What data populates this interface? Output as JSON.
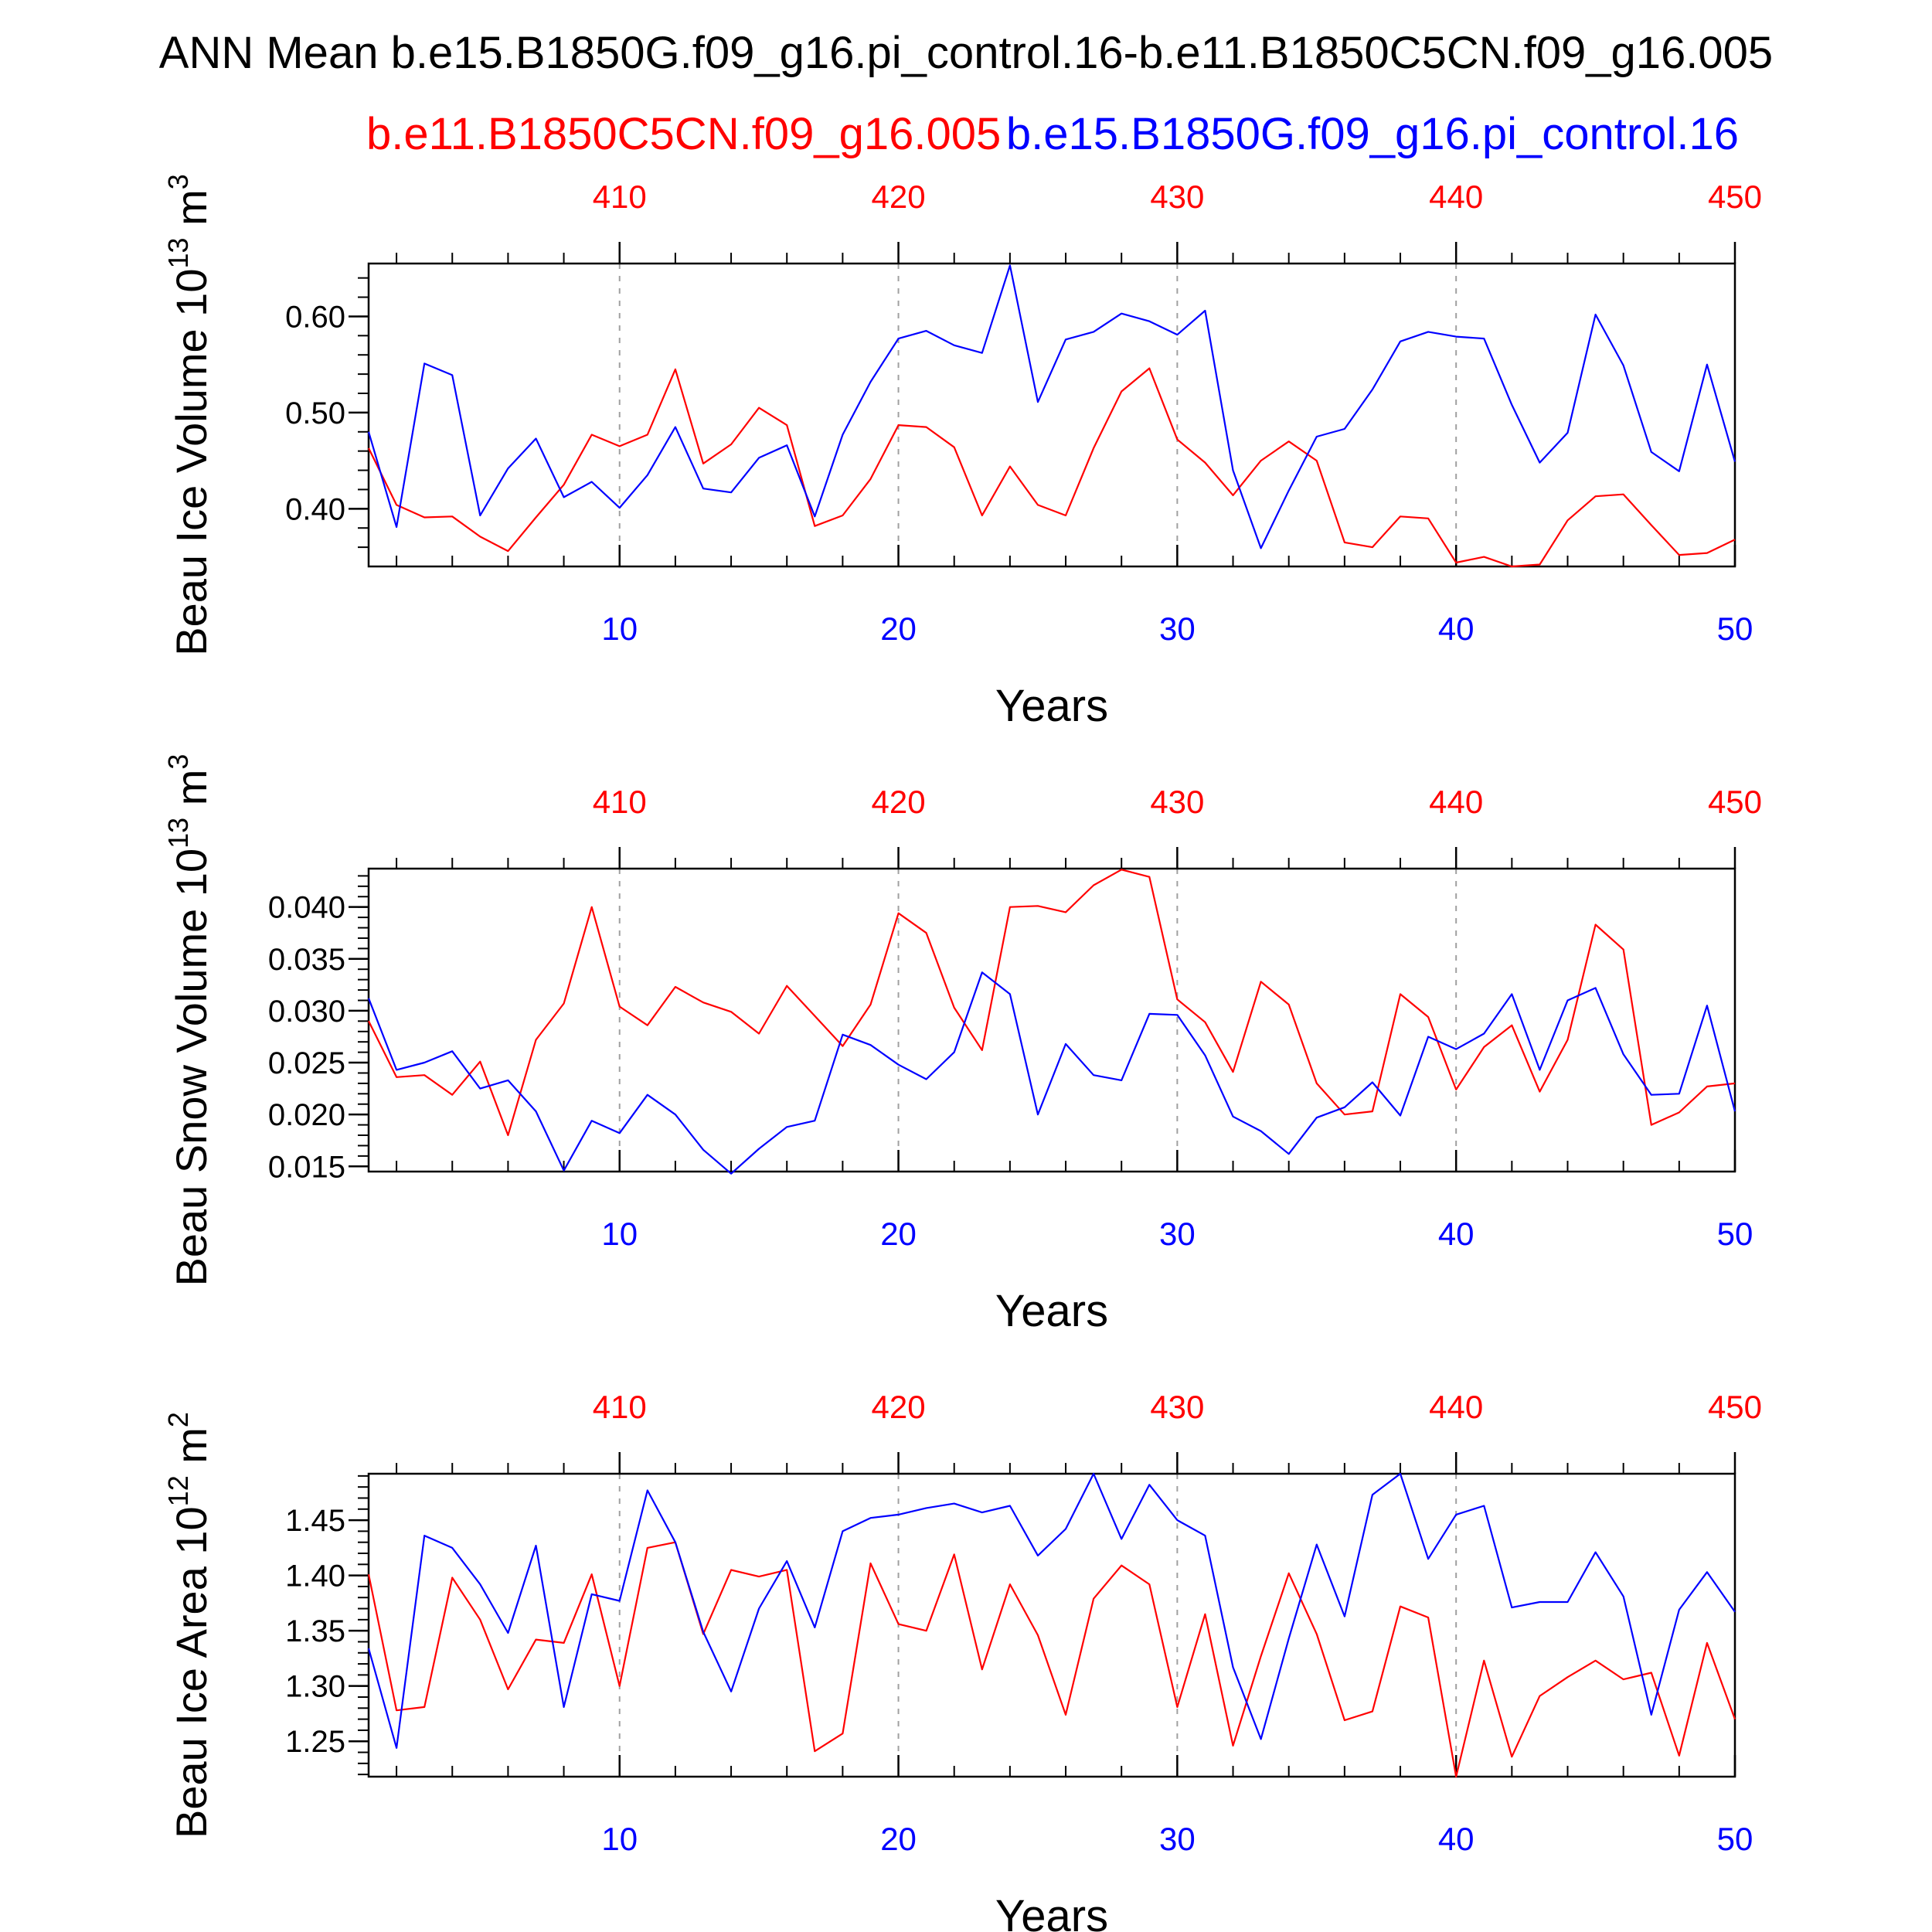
{
  "figure": {
    "title": "ANN Mean b.e15.B1850G.f09_g16.pi_control.16-b.e11.B1850C5CN.f09_g16.005",
    "subtitle_red": "b.e11.B1850C5CN.f09_g16.005",
    "subtitle_blue": "b.e15.B1850G.f09_g16.pi_control.16",
    "colors": {
      "red": "#ff0000",
      "blue": "#0000ff",
      "axis": "#000000",
      "grid": "#a0a0a0"
    }
  },
  "chart_data": [
    {
      "type": "line",
      "ylabel": "Beau Ice Volume 10",
      "ylabel_exp": "13",
      "ylabel_unit": " m",
      "ylabel_unit_exp": "3",
      "xlabel": "Years",
      "xlim": [
        1,
        50
      ],
      "top_xlim": [
        401,
        450
      ],
      "ylim": [
        0.34,
        0.655
      ],
      "yticks": [
        "0.40",
        "0.50",
        "0.60"
      ],
      "bottom_ticks": [
        "10",
        "20",
        "30",
        "40",
        "50"
      ],
      "top_ticks": [
        "410",
        "420",
        "430",
        "440",
        "450"
      ],
      "grid": "dashed vertical lines at every 10 years",
      "x": [
        1,
        2,
        3,
        4,
        5,
        6,
        7,
        8,
        9,
        10,
        11,
        12,
        13,
        14,
        15,
        16,
        17,
        18,
        19,
        20,
        21,
        22,
        23,
        24,
        25,
        26,
        27,
        28,
        29,
        30,
        31,
        32,
        33,
        34,
        35,
        36,
        37,
        38,
        39,
        40,
        41,
        42,
        43,
        44,
        45,
        46,
        47,
        48,
        49,
        50
      ],
      "series": [
        {
          "name": "b.e11.B1850C5CN.f09_g16.005",
          "color": "#ff0000",
          "values": [
            0.463,
            0.404,
            0.391,
            0.392,
            0.371,
            0.356,
            0.391,
            0.425,
            0.477,
            0.465,
            0.477,
            0.545,
            0.447,
            0.467,
            0.505,
            0.487,
            0.382,
            0.393,
            0.431,
            0.487,
            0.485,
            0.464,
            0.393,
            0.444,
            0.404,
            0.393,
            0.463,
            0.522,
            0.546,
            0.472,
            0.448,
            0.414,
            0.45,
            0.47,
            0.45,
            0.365,
            0.36,
            0.392,
            0.39,
            0.344,
            0.35,
            0.34,
            0.342,
            0.388,
            0.413,
            0.415,
            0.383,
            0.352,
            0.354,
            0.368
          ]
        },
        {
          "name": "b.e15.B1850G.f09_g16.pi_control.16",
          "color": "#0000ff",
          "values": [
            0.48,
            0.381,
            0.551,
            0.539,
            0.393,
            0.442,
            0.473,
            0.412,
            0.428,
            0.401,
            0.435,
            0.485,
            0.421,
            0.417,
            0.453,
            0.466,
            0.392,
            0.477,
            0.532,
            0.577,
            0.585,
            0.57,
            0.562,
            0.653,
            0.511,
            0.576,
            0.584,
            0.603,
            0.595,
            0.581,
            0.606,
            0.44,
            0.359,
            0.419,
            0.475,
            0.483,
            0.524,
            0.574,
            0.584,
            0.579,
            0.577,
            0.508,
            0.448,
            0.479,
            0.602,
            0.549,
            0.459,
            0.439,
            0.55,
            0.449
          ]
        }
      ]
    },
    {
      "type": "line",
      "ylabel": "Beau Snow Volume 10",
      "ylabel_exp": "13",
      "ylabel_unit": " m",
      "ylabel_unit_exp": "3",
      "xlabel": "Years",
      "xlim": [
        1,
        50
      ],
      "top_xlim": [
        401,
        450
      ],
      "ylim": [
        0.0145,
        0.0437
      ],
      "yticks": [
        "0.015",
        "0.020",
        "0.025",
        "0.030",
        "0.035",
        "0.040"
      ],
      "bottom_ticks": [
        "10",
        "20",
        "30",
        "40",
        "50"
      ],
      "top_ticks": [
        "410",
        "420",
        "430",
        "440",
        "450"
      ],
      "grid": "dashed vertical lines at every 10 years",
      "x": [
        1,
        2,
        3,
        4,
        5,
        6,
        7,
        8,
        9,
        10,
        11,
        12,
        13,
        14,
        15,
        16,
        17,
        18,
        19,
        20,
        21,
        22,
        23,
        24,
        25,
        26,
        27,
        28,
        29,
        30,
        31,
        32,
        33,
        34,
        35,
        36,
        37,
        38,
        39,
        40,
        41,
        42,
        43,
        44,
        45,
        46,
        47,
        48,
        49,
        50
      ],
      "series": [
        {
          "name": "b.e11.B1850C5CN.f09_g16.005",
          "color": "#ff0000",
          "values": [
            0.029,
            0.0236,
            0.0238,
            0.0219,
            0.0251,
            0.018,
            0.0272,
            0.0307,
            0.04,
            0.0304,
            0.0286,
            0.0323,
            0.0308,
            0.0299,
            0.0278,
            0.0324,
            0.0295,
            0.0266,
            0.0306,
            0.0394,
            0.0375,
            0.0303,
            0.0262,
            0.04,
            0.0401,
            0.0395,
            0.0421,
            0.0436,
            0.0429,
            0.0311,
            0.0289,
            0.0241,
            0.0328,
            0.0306,
            0.023,
            0.02,
            0.0203,
            0.0316,
            0.0294,
            0.0224,
            0.0265,
            0.0286,
            0.0222,
            0.0272,
            0.0383,
            0.0359,
            0.019,
            0.0202,
            0.0227,
            0.023
          ]
        },
        {
          "name": "b.e15.B1850G.f09_g16.pi_control.16",
          "color": "#0000ff",
          "values": [
            0.0312,
            0.0243,
            0.025,
            0.0261,
            0.0225,
            0.0233,
            0.0203,
            0.0146,
            0.0194,
            0.0182,
            0.0219,
            0.02,
            0.0166,
            0.0143,
            0.0167,
            0.0188,
            0.0194,
            0.0277,
            0.0267,
            0.0248,
            0.0234,
            0.026,
            0.0337,
            0.0316,
            0.02,
            0.0268,
            0.0238,
            0.0233,
            0.0297,
            0.0296,
            0.0257,
            0.0198,
            0.0184,
            0.0162,
            0.0197,
            0.0207,
            0.0231,
            0.0199,
            0.0275,
            0.0263,
            0.0278,
            0.0316,
            0.0243,
            0.031,
            0.0322,
            0.0258,
            0.0219,
            0.022,
            0.0305,
            0.0203
          ]
        }
      ]
    },
    {
      "type": "line",
      "ylabel": "Beau Ice Area 10",
      "ylabel_exp": "12",
      "ylabel_unit": " m",
      "ylabel_unit_exp": "2",
      "xlabel": "Years",
      "xlim": [
        1,
        50
      ],
      "top_xlim": [
        401,
        450
      ],
      "ylim": [
        1.218,
        1.492
      ],
      "yticks": [
        "1.25",
        "1.30",
        "1.35",
        "1.40",
        "1.45"
      ],
      "bottom_ticks": [
        "10",
        "20",
        "30",
        "40",
        "50"
      ],
      "top_ticks": [
        "410",
        "420",
        "430",
        "440",
        "450"
      ],
      "grid": "dashed vertical lines at every 10 years",
      "x": [
        1,
        2,
        3,
        4,
        5,
        6,
        7,
        8,
        9,
        10,
        11,
        12,
        13,
        14,
        15,
        16,
        17,
        18,
        19,
        20,
        21,
        22,
        23,
        24,
        25,
        26,
        27,
        28,
        29,
        30,
        31,
        32,
        33,
        34,
        35,
        36,
        37,
        38,
        39,
        40,
        41,
        42,
        43,
        44,
        45,
        46,
        47,
        48,
        49,
        50
      ],
      "series": [
        {
          "name": "b.e11.B1850C5CN.f09_g16.005",
          "color": "#ff0000",
          "values": [
            1.401,
            1.278,
            1.281,
            1.398,
            1.36,
            1.297,
            1.342,
            1.339,
            1.401,
            1.3,
            1.425,
            1.43,
            1.347,
            1.405,
            1.399,
            1.405,
            1.241,
            1.257,
            1.411,
            1.356,
            1.35,
            1.419,
            1.315,
            1.392,
            1.346,
            1.274,
            1.379,
            1.409,
            1.392,
            1.281,
            1.365,
            1.246,
            1.327,
            1.402,
            1.347,
            1.269,
            1.277,
            1.372,
            1.362,
            1.218,
            1.323,
            1.236,
            1.291,
            1.308,
            1.323,
            1.306,
            1.312,
            1.237,
            1.339,
            1.27
          ]
        },
        {
          "name": "b.e15.B1850G.f09_g16.pi_control.16",
          "color": "#0000ff",
          "values": [
            1.334,
            1.244,
            1.436,
            1.425,
            1.392,
            1.348,
            1.427,
            1.281,
            1.383,
            1.377,
            1.477,
            1.43,
            1.349,
            1.295,
            1.37,
            1.413,
            1.353,
            1.44,
            1.452,
            1.455,
            1.461,
            1.465,
            1.457,
            1.463,
            1.418,
            1.442,
            1.492,
            1.433,
            1.482,
            1.45,
            1.436,
            1.317,
            1.252,
            1.343,
            1.428,
            1.363,
            1.473,
            1.492,
            1.415,
            1.455,
            1.463,
            1.371,
            1.376,
            1.376,
            1.421,
            1.381,
            1.274,
            1.369,
            1.403,
            1.367
          ]
        }
      ]
    }
  ]
}
